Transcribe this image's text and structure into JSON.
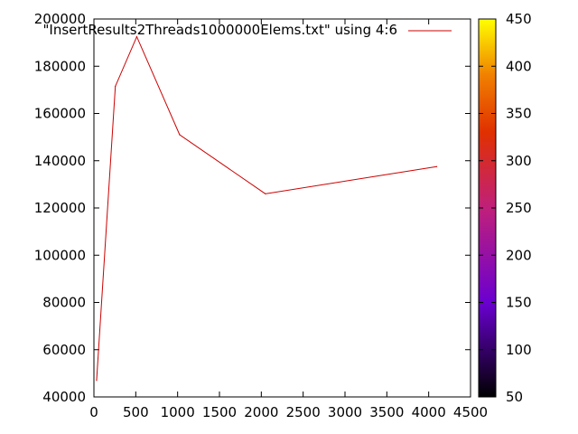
{
  "chart_data": {
    "type": "line",
    "series": [
      {
        "name": "\"InsertResults2Threads1000000Elems.txt\" using 4:6",
        "color": "#cc0000",
        "x": [
          32,
          256,
          512,
          1024,
          2048,
          4096
        ],
        "y": [
          47000,
          171500,
          192500,
          151000,
          126000,
          137500
        ]
      }
    ],
    "xlim": [
      0,
      4500
    ],
    "ylim": [
      40000,
      200000
    ],
    "xticks": [
      "0",
      "500",
      "1000",
      "1500",
      "2000",
      "2500",
      "3000",
      "3500",
      "4000",
      "4500"
    ],
    "yticks": [
      "40000",
      "60000",
      "80000",
      "100000",
      "120000",
      "140000",
      "160000",
      "180000",
      "200000"
    ],
    "legend_position": "top-right",
    "grid": false,
    "colorbar": {
      "range": [
        50,
        450
      ],
      "ticks": [
        "50",
        "100",
        "150",
        "200",
        "250",
        "300",
        "350",
        "400",
        "450"
      ],
      "palette": [
        "#000000",
        "#6a00d0",
        "#c0207a",
        "#e03000",
        "#f08000",
        "#ffff00"
      ]
    }
  }
}
